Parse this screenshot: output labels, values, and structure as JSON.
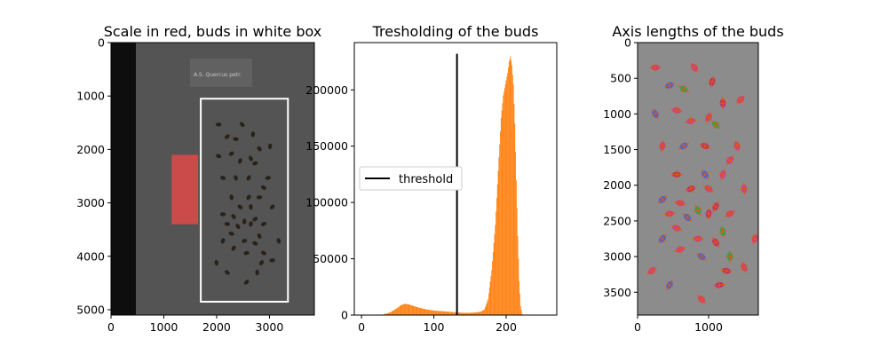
{
  "chart_data": [
    {
      "type": "image",
      "title": "Scale in red, buds in white box",
      "xlabel": "",
      "ylabel": "",
      "xlim": [
        0,
        3850
      ],
      "ylim": [
        5100,
        0
      ],
      "xticks": [
        0,
        1000,
        2000,
        3000
      ],
      "yticks": [
        0,
        1000,
        2000,
        3000,
        4000,
        5000
      ],
      "paper_label": "A.S. Quercus petr.",
      "annotations": [
        {
          "name": "scale",
          "color": "#e04a4a",
          "x": [
            1150,
            1650
          ],
          "y": [
            2100,
            3400
          ]
        },
        {
          "name": "buds-box",
          "color": "#ffffff",
          "x": [
            1700,
            3350
          ],
          "y": [
            1050,
            4850
          ]
        }
      ],
      "grid": false
    },
    {
      "type": "bar",
      "title": "Tresholding of the buds",
      "xlabel": "",
      "ylabel": "",
      "xlim": [
        -10,
        270
      ],
      "ylim": [
        0,
        242000
      ],
      "xticks": [
        0,
        100,
        200
      ],
      "yticks": [
        0,
        50000,
        100000,
        150000,
        200000
      ],
      "bar_color": "#ff7f0e",
      "histogram": {
        "x": [
          30,
          40,
          50,
          55,
          60,
          65,
          70,
          80,
          90,
          100,
          110,
          120,
          130,
          140,
          150,
          160,
          165,
          170,
          175,
          180,
          185,
          190,
          193,
          196,
          199,
          202,
          204,
          206,
          208,
          210,
          212,
          214,
          216,
          218,
          220,
          222
        ],
        "counts": [
          500,
          2500,
          6500,
          9000,
          10000,
          9500,
          8500,
          6500,
          5000,
          4000,
          3500,
          3000,
          2500,
          2000,
          2000,
          2500,
          3000,
          5000,
          14000,
          40000,
          80000,
          140000,
          175000,
          195000,
          205000,
          215000,
          225000,
          230000,
          222000,
          205000,
          170000,
          120000,
          70000,
          30000,
          8000,
          1000
        ]
      },
      "threshold": {
        "x": 132,
        "y_top": 232000,
        "label": "threshold",
        "color": "#000000"
      },
      "legend": {
        "entries": [
          "threshold"
        ],
        "placement": "center-left"
      },
      "grid": false
    },
    {
      "type": "image",
      "title": "Axis lengths of the buds",
      "xlabel": "",
      "ylabel": "",
      "xlim": [
        0,
        1700
      ],
      "ylim": [
        3820,
        0
      ],
      "xticks": [
        0,
        1000
      ],
      "yticks": [
        0,
        500,
        1000,
        1500,
        2000,
        2500,
        3000,
        3500
      ],
      "buds": [
        [
          250,
          350
        ],
        [
          800,
          350
        ],
        [
          1050,
          550
        ],
        [
          450,
          600
        ],
        [
          650,
          650
        ],
        [
          1200,
          850
        ],
        [
          1450,
          800
        ],
        [
          550,
          950
        ],
        [
          250,
          1000
        ],
        [
          1000,
          1050
        ],
        [
          750,
          1100
        ],
        [
          1100,
          1150
        ],
        [
          350,
          1450
        ],
        [
          650,
          1450
        ],
        [
          950,
          1450
        ],
        [
          1400,
          1450
        ],
        [
          1300,
          1650
        ],
        [
          550,
          1850
        ],
        [
          950,
          1850
        ],
        [
          1200,
          1850
        ],
        [
          750,
          2050
        ],
        [
          1000,
          2050
        ],
        [
          1500,
          2050
        ],
        [
          350,
          2200
        ],
        [
          600,
          2250
        ],
        [
          850,
          2350
        ],
        [
          1100,
          2300
        ],
        [
          450,
          2400
        ],
        [
          700,
          2450
        ],
        [
          1000,
          2400
        ],
        [
          1300,
          2400
        ],
        [
          550,
          2600
        ],
        [
          1200,
          2650
        ],
        [
          350,
          2750
        ],
        [
          850,
          2750
        ],
        [
          1100,
          2800
        ],
        [
          1650,
          2750
        ],
        [
          600,
          2900
        ],
        [
          900,
          3000
        ],
        [
          1300,
          3000
        ],
        [
          200,
          3200
        ],
        [
          1250,
          3200
        ],
        [
          1500,
          3150
        ],
        [
          450,
          3400
        ],
        [
          1150,
          3400
        ],
        [
          900,
          3600
        ]
      ],
      "grid": false
    }
  ]
}
